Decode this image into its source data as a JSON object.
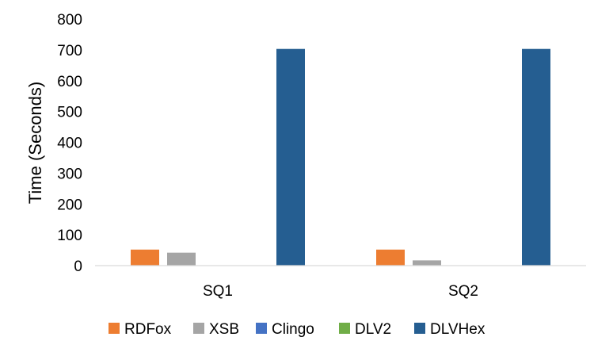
{
  "chart_data": {
    "type": "bar",
    "title": "",
    "xlabel": "",
    "ylabel": "Time (Seconds)",
    "ylim": [
      0,
      800
    ],
    "yticks": [
      0,
      100,
      200,
      300,
      400,
      500,
      600,
      700,
      800
    ],
    "grid": false,
    "legend_position": "bottom",
    "categories": [
      "SQ1",
      "SQ2"
    ],
    "series": [
      {
        "name": "RDFox",
        "color": "#ED7D31",
        "values": [
          52,
          52
        ]
      },
      {
        "name": "XSB",
        "color": "#A5A5A5",
        "values": [
          42,
          17
        ]
      },
      {
        "name": "Clingo",
        "color": "#4472C4",
        "values": [
          0,
          0
        ]
      },
      {
        "name": "DLV2",
        "color": "#70AD47",
        "values": [
          0,
          0
        ]
      },
      {
        "name": "DLVHex",
        "color": "#255E91",
        "values": [
          703,
          703
        ]
      }
    ]
  }
}
